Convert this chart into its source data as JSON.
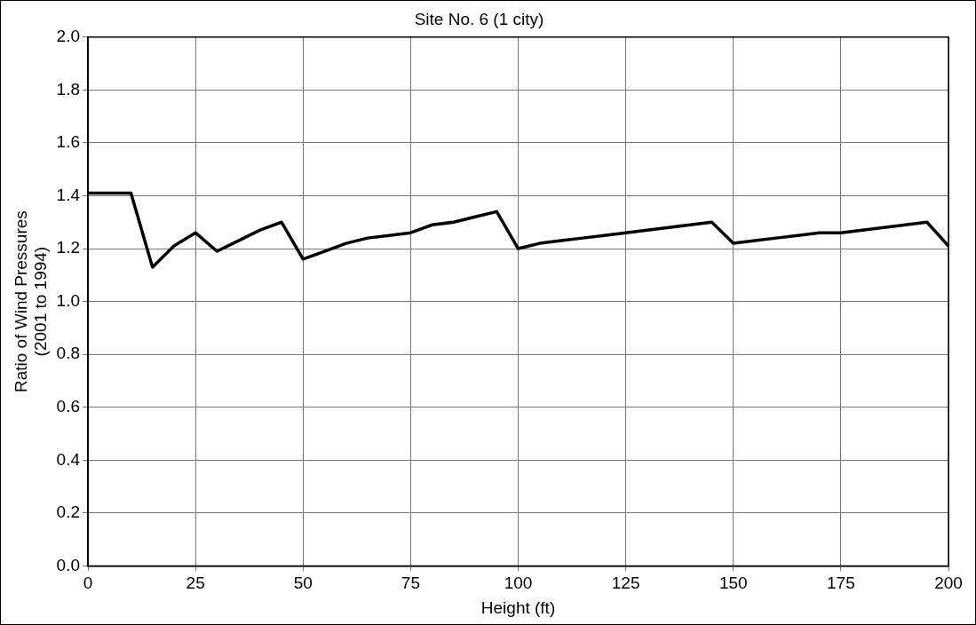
{
  "chart_data": {
    "type": "line",
    "title": "Site No. 6 (1 city)",
    "xlabel": "Height (ft)",
    "ylabel": "Ratio of Wind Pressures\n(2001 to 1994)",
    "x": [
      0,
      5,
      10,
      15,
      20,
      25,
      30,
      35,
      40,
      45,
      50,
      55,
      60,
      65,
      70,
      75,
      80,
      85,
      90,
      95,
      100,
      105,
      110,
      115,
      120,
      125,
      130,
      135,
      140,
      145,
      150,
      155,
      160,
      165,
      170,
      175,
      180,
      185,
      190,
      195,
      200
    ],
    "series": [
      {
        "color": "#000000",
        "values": [
          1.41,
          1.41,
          1.41,
          1.13,
          1.21,
          1.26,
          1.19,
          1.23,
          1.27,
          1.3,
          1.16,
          1.19,
          1.22,
          1.24,
          1.25,
          1.26,
          1.29,
          1.3,
          1.32,
          1.34,
          1.2,
          1.22,
          1.23,
          1.24,
          1.25,
          1.26,
          1.27,
          1.28,
          1.29,
          1.3,
          1.22,
          1.23,
          1.24,
          1.25,
          1.26,
          1.26,
          1.27,
          1.28,
          1.29,
          1.3,
          1.21
        ]
      }
    ],
    "xlim": [
      0,
      200
    ],
    "xticks": [
      0,
      25,
      50,
      75,
      100,
      125,
      150,
      175,
      200
    ],
    "ylim": [
      0,
      2
    ],
    "yticks": [
      {
        "value": 0,
        "label": "0.0"
      },
      {
        "value": 0.2,
        "label": "0.2"
      },
      {
        "value": 0.4,
        "label": "0.4"
      },
      {
        "value": 0.6,
        "label": "0.6"
      },
      {
        "value": 0.8,
        "label": "0.8"
      },
      {
        "value": 1,
        "label": "1.0"
      },
      {
        "value": 1.2,
        "label": "1.2"
      },
      {
        "value": 1.4,
        "label": "1.4"
      },
      {
        "value": 1.6,
        "label": "1.6"
      },
      {
        "value": 1.8,
        "label": "1.8"
      },
      {
        "value": 2,
        "label": "2.0"
      }
    ],
    "grid": true,
    "legend": false,
    "marker": "none",
    "line_style": "solid"
  }
}
